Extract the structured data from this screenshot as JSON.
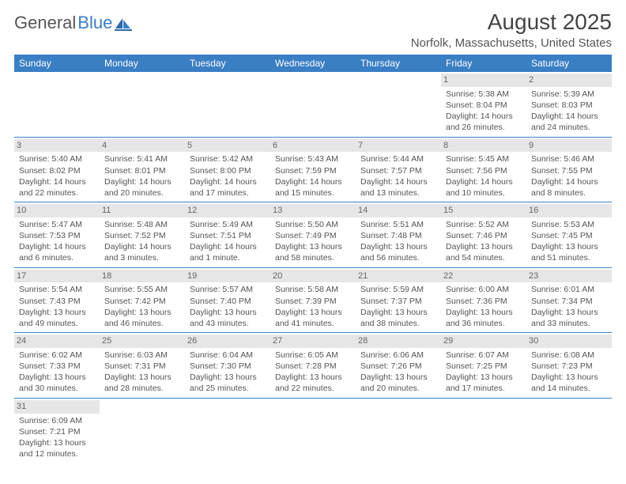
{
  "logo": {
    "text1": "General",
    "text2": "Blue"
  },
  "title": "August 2025",
  "location": "Norfolk, Massachusetts, United States",
  "colors": {
    "header_bg": "#3a7fc4",
    "header_fg": "#ffffff",
    "daynum_bg": "#e6e6e6",
    "row_border": "#3a7fc4",
    "text": "#555555",
    "page_bg": "#ffffff"
  },
  "typography": {
    "title_fontsize": 28,
    "location_fontsize": 15,
    "th_fontsize": 12,
    "cell_fontsize": 10.5
  },
  "weekdays": [
    "Sunday",
    "Monday",
    "Tuesday",
    "Wednesday",
    "Thursday",
    "Friday",
    "Saturday"
  ],
  "weeks": [
    [
      {
        "day": "",
        "sunrise": "",
        "sunset": "",
        "daylight": ""
      },
      {
        "day": "",
        "sunrise": "",
        "sunset": "",
        "daylight": ""
      },
      {
        "day": "",
        "sunrise": "",
        "sunset": "",
        "daylight": ""
      },
      {
        "day": "",
        "sunrise": "",
        "sunset": "",
        "daylight": ""
      },
      {
        "day": "",
        "sunrise": "",
        "sunset": "",
        "daylight": ""
      },
      {
        "day": "1",
        "sunrise": "Sunrise: 5:38 AM",
        "sunset": "Sunset: 8:04 PM",
        "daylight": "Daylight: 14 hours and 26 minutes."
      },
      {
        "day": "2",
        "sunrise": "Sunrise: 5:39 AM",
        "sunset": "Sunset: 8:03 PM",
        "daylight": "Daylight: 14 hours and 24 minutes."
      }
    ],
    [
      {
        "day": "3",
        "sunrise": "Sunrise: 5:40 AM",
        "sunset": "Sunset: 8:02 PM",
        "daylight": "Daylight: 14 hours and 22 minutes."
      },
      {
        "day": "4",
        "sunrise": "Sunrise: 5:41 AM",
        "sunset": "Sunset: 8:01 PM",
        "daylight": "Daylight: 14 hours and 20 minutes."
      },
      {
        "day": "5",
        "sunrise": "Sunrise: 5:42 AM",
        "sunset": "Sunset: 8:00 PM",
        "daylight": "Daylight: 14 hours and 17 minutes."
      },
      {
        "day": "6",
        "sunrise": "Sunrise: 5:43 AM",
        "sunset": "Sunset: 7:59 PM",
        "daylight": "Daylight: 14 hours and 15 minutes."
      },
      {
        "day": "7",
        "sunrise": "Sunrise: 5:44 AM",
        "sunset": "Sunset: 7:57 PM",
        "daylight": "Daylight: 14 hours and 13 minutes."
      },
      {
        "day": "8",
        "sunrise": "Sunrise: 5:45 AM",
        "sunset": "Sunset: 7:56 PM",
        "daylight": "Daylight: 14 hours and 10 minutes."
      },
      {
        "day": "9",
        "sunrise": "Sunrise: 5:46 AM",
        "sunset": "Sunset: 7:55 PM",
        "daylight": "Daylight: 14 hours and 8 minutes."
      }
    ],
    [
      {
        "day": "10",
        "sunrise": "Sunrise: 5:47 AM",
        "sunset": "Sunset: 7:53 PM",
        "daylight": "Daylight: 14 hours and 6 minutes."
      },
      {
        "day": "11",
        "sunrise": "Sunrise: 5:48 AM",
        "sunset": "Sunset: 7:52 PM",
        "daylight": "Daylight: 14 hours and 3 minutes."
      },
      {
        "day": "12",
        "sunrise": "Sunrise: 5:49 AM",
        "sunset": "Sunset: 7:51 PM",
        "daylight": "Daylight: 14 hours and 1 minute."
      },
      {
        "day": "13",
        "sunrise": "Sunrise: 5:50 AM",
        "sunset": "Sunset: 7:49 PM",
        "daylight": "Daylight: 13 hours and 58 minutes."
      },
      {
        "day": "14",
        "sunrise": "Sunrise: 5:51 AM",
        "sunset": "Sunset: 7:48 PM",
        "daylight": "Daylight: 13 hours and 56 minutes."
      },
      {
        "day": "15",
        "sunrise": "Sunrise: 5:52 AM",
        "sunset": "Sunset: 7:46 PM",
        "daylight": "Daylight: 13 hours and 54 minutes."
      },
      {
        "day": "16",
        "sunrise": "Sunrise: 5:53 AM",
        "sunset": "Sunset: 7:45 PM",
        "daylight": "Daylight: 13 hours and 51 minutes."
      }
    ],
    [
      {
        "day": "17",
        "sunrise": "Sunrise: 5:54 AM",
        "sunset": "Sunset: 7:43 PM",
        "daylight": "Daylight: 13 hours and 49 minutes."
      },
      {
        "day": "18",
        "sunrise": "Sunrise: 5:55 AM",
        "sunset": "Sunset: 7:42 PM",
        "daylight": "Daylight: 13 hours and 46 minutes."
      },
      {
        "day": "19",
        "sunrise": "Sunrise: 5:57 AM",
        "sunset": "Sunset: 7:40 PM",
        "daylight": "Daylight: 13 hours and 43 minutes."
      },
      {
        "day": "20",
        "sunrise": "Sunrise: 5:58 AM",
        "sunset": "Sunset: 7:39 PM",
        "daylight": "Daylight: 13 hours and 41 minutes."
      },
      {
        "day": "21",
        "sunrise": "Sunrise: 5:59 AM",
        "sunset": "Sunset: 7:37 PM",
        "daylight": "Daylight: 13 hours and 38 minutes."
      },
      {
        "day": "22",
        "sunrise": "Sunrise: 6:00 AM",
        "sunset": "Sunset: 7:36 PM",
        "daylight": "Daylight: 13 hours and 36 minutes."
      },
      {
        "day": "23",
        "sunrise": "Sunrise: 6:01 AM",
        "sunset": "Sunset: 7:34 PM",
        "daylight": "Daylight: 13 hours and 33 minutes."
      }
    ],
    [
      {
        "day": "24",
        "sunrise": "Sunrise: 6:02 AM",
        "sunset": "Sunset: 7:33 PM",
        "daylight": "Daylight: 13 hours and 30 minutes."
      },
      {
        "day": "25",
        "sunrise": "Sunrise: 6:03 AM",
        "sunset": "Sunset: 7:31 PM",
        "daylight": "Daylight: 13 hours and 28 minutes."
      },
      {
        "day": "26",
        "sunrise": "Sunrise: 6:04 AM",
        "sunset": "Sunset: 7:30 PM",
        "daylight": "Daylight: 13 hours and 25 minutes."
      },
      {
        "day": "27",
        "sunrise": "Sunrise: 6:05 AM",
        "sunset": "Sunset: 7:28 PM",
        "daylight": "Daylight: 13 hours and 22 minutes."
      },
      {
        "day": "28",
        "sunrise": "Sunrise: 6:06 AM",
        "sunset": "Sunset: 7:26 PM",
        "daylight": "Daylight: 13 hours and 20 minutes."
      },
      {
        "day": "29",
        "sunrise": "Sunrise: 6:07 AM",
        "sunset": "Sunset: 7:25 PM",
        "daylight": "Daylight: 13 hours and 17 minutes."
      },
      {
        "day": "30",
        "sunrise": "Sunrise: 6:08 AM",
        "sunset": "Sunset: 7:23 PM",
        "daylight": "Daylight: 13 hours and 14 minutes."
      }
    ],
    [
      {
        "day": "31",
        "sunrise": "Sunrise: 6:09 AM",
        "sunset": "Sunset: 7:21 PM",
        "daylight": "Daylight: 13 hours and 12 minutes."
      },
      {
        "day": "",
        "sunrise": "",
        "sunset": "",
        "daylight": ""
      },
      {
        "day": "",
        "sunrise": "",
        "sunset": "",
        "daylight": ""
      },
      {
        "day": "",
        "sunrise": "",
        "sunset": "",
        "daylight": ""
      },
      {
        "day": "",
        "sunrise": "",
        "sunset": "",
        "daylight": ""
      },
      {
        "day": "",
        "sunrise": "",
        "sunset": "",
        "daylight": ""
      },
      {
        "day": "",
        "sunrise": "",
        "sunset": "",
        "daylight": ""
      }
    ]
  ]
}
